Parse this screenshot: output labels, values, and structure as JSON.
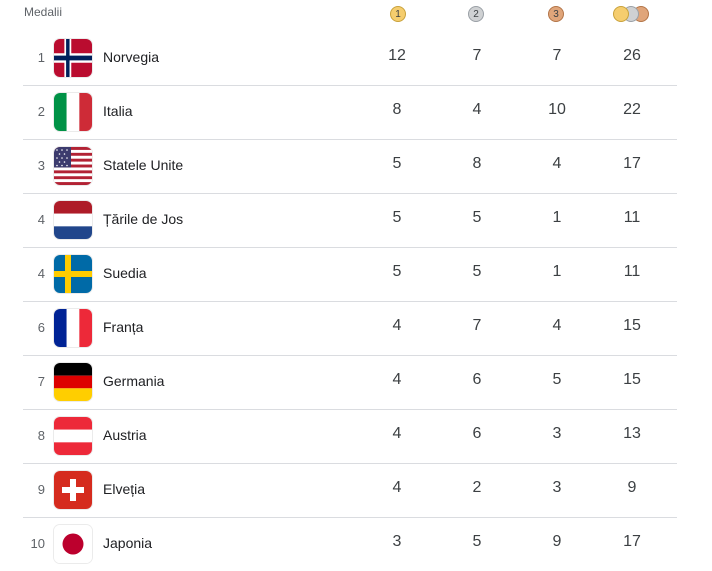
{
  "header": {
    "label": "Medalii",
    "gold_mark": "1",
    "silver_mark": "2",
    "bronze_mark": "3"
  },
  "colors": {
    "gold": "#f5cd6e",
    "silver": "#cfd1d3",
    "bronze": "#e0a57a",
    "divider": "#dadce0"
  },
  "rows": [
    {
      "rank": "1",
      "country": "Norvegia",
      "flag_icon": "norway-flag-icon",
      "gold": "12",
      "silver": "7",
      "bronze": "7",
      "total": "26"
    },
    {
      "rank": "2",
      "country": "Italia",
      "flag_icon": "italy-flag-icon",
      "gold": "8",
      "silver": "4",
      "bronze": "10",
      "total": "22"
    },
    {
      "rank": "3",
      "country": "Statele Unite",
      "flag_icon": "usa-flag-icon",
      "gold": "5",
      "silver": "8",
      "bronze": "4",
      "total": "17"
    },
    {
      "rank": "4",
      "country": "Țările de Jos",
      "flag_icon": "netherlands-flag-icon",
      "gold": "5",
      "silver": "5",
      "bronze": "1",
      "total": "11"
    },
    {
      "rank": "4",
      "country": "Suedia",
      "flag_icon": "sweden-flag-icon",
      "gold": "5",
      "silver": "5",
      "bronze": "1",
      "total": "11"
    },
    {
      "rank": "6",
      "country": "Franța",
      "flag_icon": "france-flag-icon",
      "gold": "4",
      "silver": "7",
      "bronze": "4",
      "total": "15"
    },
    {
      "rank": "7",
      "country": "Germania",
      "flag_icon": "germany-flag-icon",
      "gold": "4",
      "silver": "6",
      "bronze": "5",
      "total": "15"
    },
    {
      "rank": "8",
      "country": "Austria",
      "flag_icon": "austria-flag-icon",
      "gold": "4",
      "silver": "6",
      "bronze": "3",
      "total": "13"
    },
    {
      "rank": "9",
      "country": "Elveția",
      "flag_icon": "switzerland-flag-icon",
      "gold": "4",
      "silver": "2",
      "bronze": "3",
      "total": "9"
    },
    {
      "rank": "10",
      "country": "Japonia",
      "flag_icon": "japan-flag-icon",
      "gold": "3",
      "silver": "5",
      "bronze": "9",
      "total": "17"
    }
  ]
}
